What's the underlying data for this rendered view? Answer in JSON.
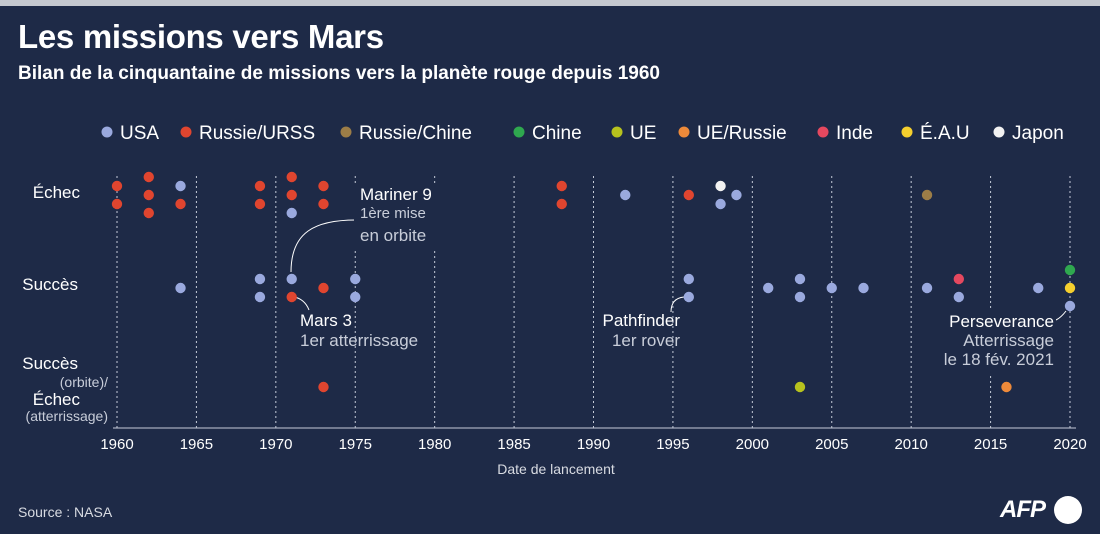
{
  "header": {
    "title": "Les missions vers Mars",
    "subtitle": "Bilan de la cinquantaine de missions vers la planète rouge depuis 1960"
  },
  "footer": {
    "source": "Source : NASA",
    "logo_text": "AFP"
  },
  "chart_data": {
    "type": "scatter",
    "xlabel": "Date de lancement",
    "xlim": [
      1960,
      2020
    ],
    "xticks": [
      1960,
      1965,
      1970,
      1975,
      1980,
      1985,
      1990,
      1995,
      2000,
      2005,
      2010,
      2015,
      2020
    ],
    "legend_position": "top",
    "categories": [
      {
        "id": "echec",
        "lines": [
          "Échec"
        ]
      },
      {
        "id": "succes",
        "lines": [
          "Succès"
        ]
      },
      {
        "id": "mixte",
        "lines": [
          "Succès",
          "(orbite)/",
          "Échec",
          "(atterrissage)"
        ]
      }
    ],
    "series": [
      {
        "name": "USA",
        "color": "#9aa9de",
        "points": [
          {
            "x": 1964,
            "y": "echec"
          },
          {
            "x": 1971,
            "y": "echec"
          },
          {
            "x": 1992,
            "y": "echec"
          },
          {
            "x": 1998,
            "y": "echec"
          },
          {
            "x": 1999,
            "y": "echec"
          },
          {
            "x": 1964,
            "y": "succes"
          },
          {
            "x": 1969,
            "y": "succes"
          },
          {
            "x": 1969,
            "y": "succes"
          },
          {
            "x": 1971,
            "y": "succes"
          },
          {
            "x": 1975,
            "y": "succes"
          },
          {
            "x": 1975,
            "y": "succes"
          },
          {
            "x": 1996,
            "y": "succes"
          },
          {
            "x": 1996,
            "y": "succes"
          },
          {
            "x": 2001,
            "y": "succes"
          },
          {
            "x": 2003,
            "y": "succes"
          },
          {
            "x": 2003,
            "y": "succes"
          },
          {
            "x": 2005,
            "y": "succes"
          },
          {
            "x": 2007,
            "y": "succes"
          },
          {
            "x": 2011,
            "y": "succes"
          },
          {
            "x": 2013,
            "y": "succes"
          },
          {
            "x": 2018,
            "y": "succes"
          },
          {
            "x": 2020,
            "y": "succes"
          }
        ]
      },
      {
        "name": "Russie/URSS",
        "color": "#e0452f",
        "points": [
          {
            "x": 1960,
            "y": "echec"
          },
          {
            "x": 1960,
            "y": "echec"
          },
          {
            "x": 1962,
            "y": "echec"
          },
          {
            "x": 1962,
            "y": "echec"
          },
          {
            "x": 1962,
            "y": "echec"
          },
          {
            "x": 1964,
            "y": "echec"
          },
          {
            "x": 1969,
            "y": "echec"
          },
          {
            "x": 1969,
            "y": "echec"
          },
          {
            "x": 1971,
            "y": "echec"
          },
          {
            "x": 1971,
            "y": "echec"
          },
          {
            "x": 1973,
            "y": "echec"
          },
          {
            "x": 1973,
            "y": "echec"
          },
          {
            "x": 1988,
            "y": "echec"
          },
          {
            "x": 1988,
            "y": "echec"
          },
          {
            "x": 1996,
            "y": "echec"
          },
          {
            "x": 1971,
            "y": "succes"
          },
          {
            "x": 1973,
            "y": "succes"
          },
          {
            "x": 1973,
            "y": "mixte"
          }
        ]
      },
      {
        "name": "Russie/Chine",
        "color": "#9c7d47",
        "points": [
          {
            "x": 2011,
            "y": "echec"
          }
        ]
      },
      {
        "name": "Chine",
        "color": "#2fa84f",
        "points": [
          {
            "x": 2020,
            "y": "succes"
          }
        ]
      },
      {
        "name": "UE",
        "color": "#b7c21e",
        "points": [
          {
            "x": 2003,
            "y": "mixte"
          }
        ]
      },
      {
        "name": "UE/Russie",
        "color": "#ee8a3a",
        "points": [
          {
            "x": 2016,
            "y": "mixte"
          }
        ]
      },
      {
        "name": "Inde",
        "color": "#e5485f",
        "points": [
          {
            "x": 2013,
            "y": "succes"
          }
        ]
      },
      {
        "name": "É.A.U",
        "color": "#f5cf2e",
        "points": [
          {
            "x": 2020,
            "y": "succes"
          }
        ]
      },
      {
        "name": "Japon",
        "color": "#f2f2f2",
        "points": [
          {
            "x": 1998,
            "y": "echec"
          }
        ]
      }
    ],
    "annotations": [
      {
        "title": "Mariner 9",
        "lines": [
          "1ère mise",
          "en orbite"
        ]
      },
      {
        "title": "Mars 3",
        "lines": [
          "1er atterrissage"
        ]
      },
      {
        "title": "Pathfinder",
        "lines": [
          "1er rover"
        ]
      },
      {
        "title": "Perseverance",
        "lines": [
          "Atterrissage",
          "le 18 fév. 2021"
        ]
      }
    ]
  }
}
